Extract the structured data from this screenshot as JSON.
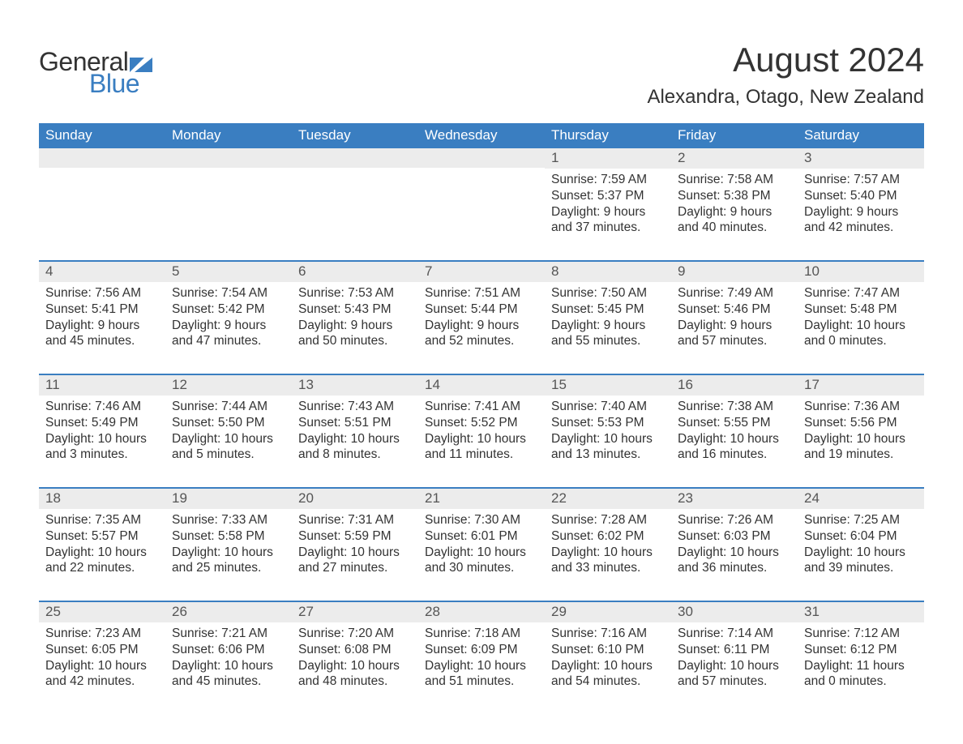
{
  "brand": {
    "word1": "General",
    "word2": "Blue",
    "flag_color": "#3a7ec1"
  },
  "colors": {
    "header_bg": "#3a7ec1",
    "header_text": "#ffffff",
    "band_bg": "#ececec",
    "text": "#333333",
    "accent": "#3a7ec1"
  },
  "title": "August 2024",
  "location": "Alexandra, Otago, New Zealand",
  "weekdays": [
    "Sunday",
    "Monday",
    "Tuesday",
    "Wednesday",
    "Thursday",
    "Friday",
    "Saturday"
  ],
  "labels": {
    "sunrise_prefix": "Sunrise: ",
    "sunset_prefix": "Sunset: ",
    "daylight_prefix": "Daylight: "
  },
  "weeks": [
    [
      {
        "day": "",
        "sunrise": "",
        "sunset": "",
        "daylight": ""
      },
      {
        "day": "",
        "sunrise": "",
        "sunset": "",
        "daylight": ""
      },
      {
        "day": "",
        "sunrise": "",
        "sunset": "",
        "daylight": ""
      },
      {
        "day": "",
        "sunrise": "",
        "sunset": "",
        "daylight": ""
      },
      {
        "day": "1",
        "sunrise": "7:59 AM",
        "sunset": "5:37 PM",
        "daylight": "9 hours and 37 minutes."
      },
      {
        "day": "2",
        "sunrise": "7:58 AM",
        "sunset": "5:38 PM",
        "daylight": "9 hours and 40 minutes."
      },
      {
        "day": "3",
        "sunrise": "7:57 AM",
        "sunset": "5:40 PM",
        "daylight": "9 hours and 42 minutes."
      }
    ],
    [
      {
        "day": "4",
        "sunrise": "7:56 AM",
        "sunset": "5:41 PM",
        "daylight": "9 hours and 45 minutes."
      },
      {
        "day": "5",
        "sunrise": "7:54 AM",
        "sunset": "5:42 PM",
        "daylight": "9 hours and 47 minutes."
      },
      {
        "day": "6",
        "sunrise": "7:53 AM",
        "sunset": "5:43 PM",
        "daylight": "9 hours and 50 minutes."
      },
      {
        "day": "7",
        "sunrise": "7:51 AM",
        "sunset": "5:44 PM",
        "daylight": "9 hours and 52 minutes."
      },
      {
        "day": "8",
        "sunrise": "7:50 AM",
        "sunset": "5:45 PM",
        "daylight": "9 hours and 55 minutes."
      },
      {
        "day": "9",
        "sunrise": "7:49 AM",
        "sunset": "5:46 PM",
        "daylight": "9 hours and 57 minutes."
      },
      {
        "day": "10",
        "sunrise": "7:47 AM",
        "sunset": "5:48 PM",
        "daylight": "10 hours and 0 minutes."
      }
    ],
    [
      {
        "day": "11",
        "sunrise": "7:46 AM",
        "sunset": "5:49 PM",
        "daylight": "10 hours and 3 minutes."
      },
      {
        "day": "12",
        "sunrise": "7:44 AM",
        "sunset": "5:50 PM",
        "daylight": "10 hours and 5 minutes."
      },
      {
        "day": "13",
        "sunrise": "7:43 AM",
        "sunset": "5:51 PM",
        "daylight": "10 hours and 8 minutes."
      },
      {
        "day": "14",
        "sunrise": "7:41 AM",
        "sunset": "5:52 PM",
        "daylight": "10 hours and 11 minutes."
      },
      {
        "day": "15",
        "sunrise": "7:40 AM",
        "sunset": "5:53 PM",
        "daylight": "10 hours and 13 minutes."
      },
      {
        "day": "16",
        "sunrise": "7:38 AM",
        "sunset": "5:55 PM",
        "daylight": "10 hours and 16 minutes."
      },
      {
        "day": "17",
        "sunrise": "7:36 AM",
        "sunset": "5:56 PM",
        "daylight": "10 hours and 19 minutes."
      }
    ],
    [
      {
        "day": "18",
        "sunrise": "7:35 AM",
        "sunset": "5:57 PM",
        "daylight": "10 hours and 22 minutes."
      },
      {
        "day": "19",
        "sunrise": "7:33 AM",
        "sunset": "5:58 PM",
        "daylight": "10 hours and 25 minutes."
      },
      {
        "day": "20",
        "sunrise": "7:31 AM",
        "sunset": "5:59 PM",
        "daylight": "10 hours and 27 minutes."
      },
      {
        "day": "21",
        "sunrise": "7:30 AM",
        "sunset": "6:01 PM",
        "daylight": "10 hours and 30 minutes."
      },
      {
        "day": "22",
        "sunrise": "7:28 AM",
        "sunset": "6:02 PM",
        "daylight": "10 hours and 33 minutes."
      },
      {
        "day": "23",
        "sunrise": "7:26 AM",
        "sunset": "6:03 PM",
        "daylight": "10 hours and 36 minutes."
      },
      {
        "day": "24",
        "sunrise": "7:25 AM",
        "sunset": "6:04 PM",
        "daylight": "10 hours and 39 minutes."
      }
    ],
    [
      {
        "day": "25",
        "sunrise": "7:23 AM",
        "sunset": "6:05 PM",
        "daylight": "10 hours and 42 minutes."
      },
      {
        "day": "26",
        "sunrise": "7:21 AM",
        "sunset": "6:06 PM",
        "daylight": "10 hours and 45 minutes."
      },
      {
        "day": "27",
        "sunrise": "7:20 AM",
        "sunset": "6:08 PM",
        "daylight": "10 hours and 48 minutes."
      },
      {
        "day": "28",
        "sunrise": "7:18 AM",
        "sunset": "6:09 PM",
        "daylight": "10 hours and 51 minutes."
      },
      {
        "day": "29",
        "sunrise": "7:16 AM",
        "sunset": "6:10 PM",
        "daylight": "10 hours and 54 minutes."
      },
      {
        "day": "30",
        "sunrise": "7:14 AM",
        "sunset": "6:11 PM",
        "daylight": "10 hours and 57 minutes."
      },
      {
        "day": "31",
        "sunrise": "7:12 AM",
        "sunset": "6:12 PM",
        "daylight": "11 hours and 0 minutes."
      }
    ]
  ]
}
